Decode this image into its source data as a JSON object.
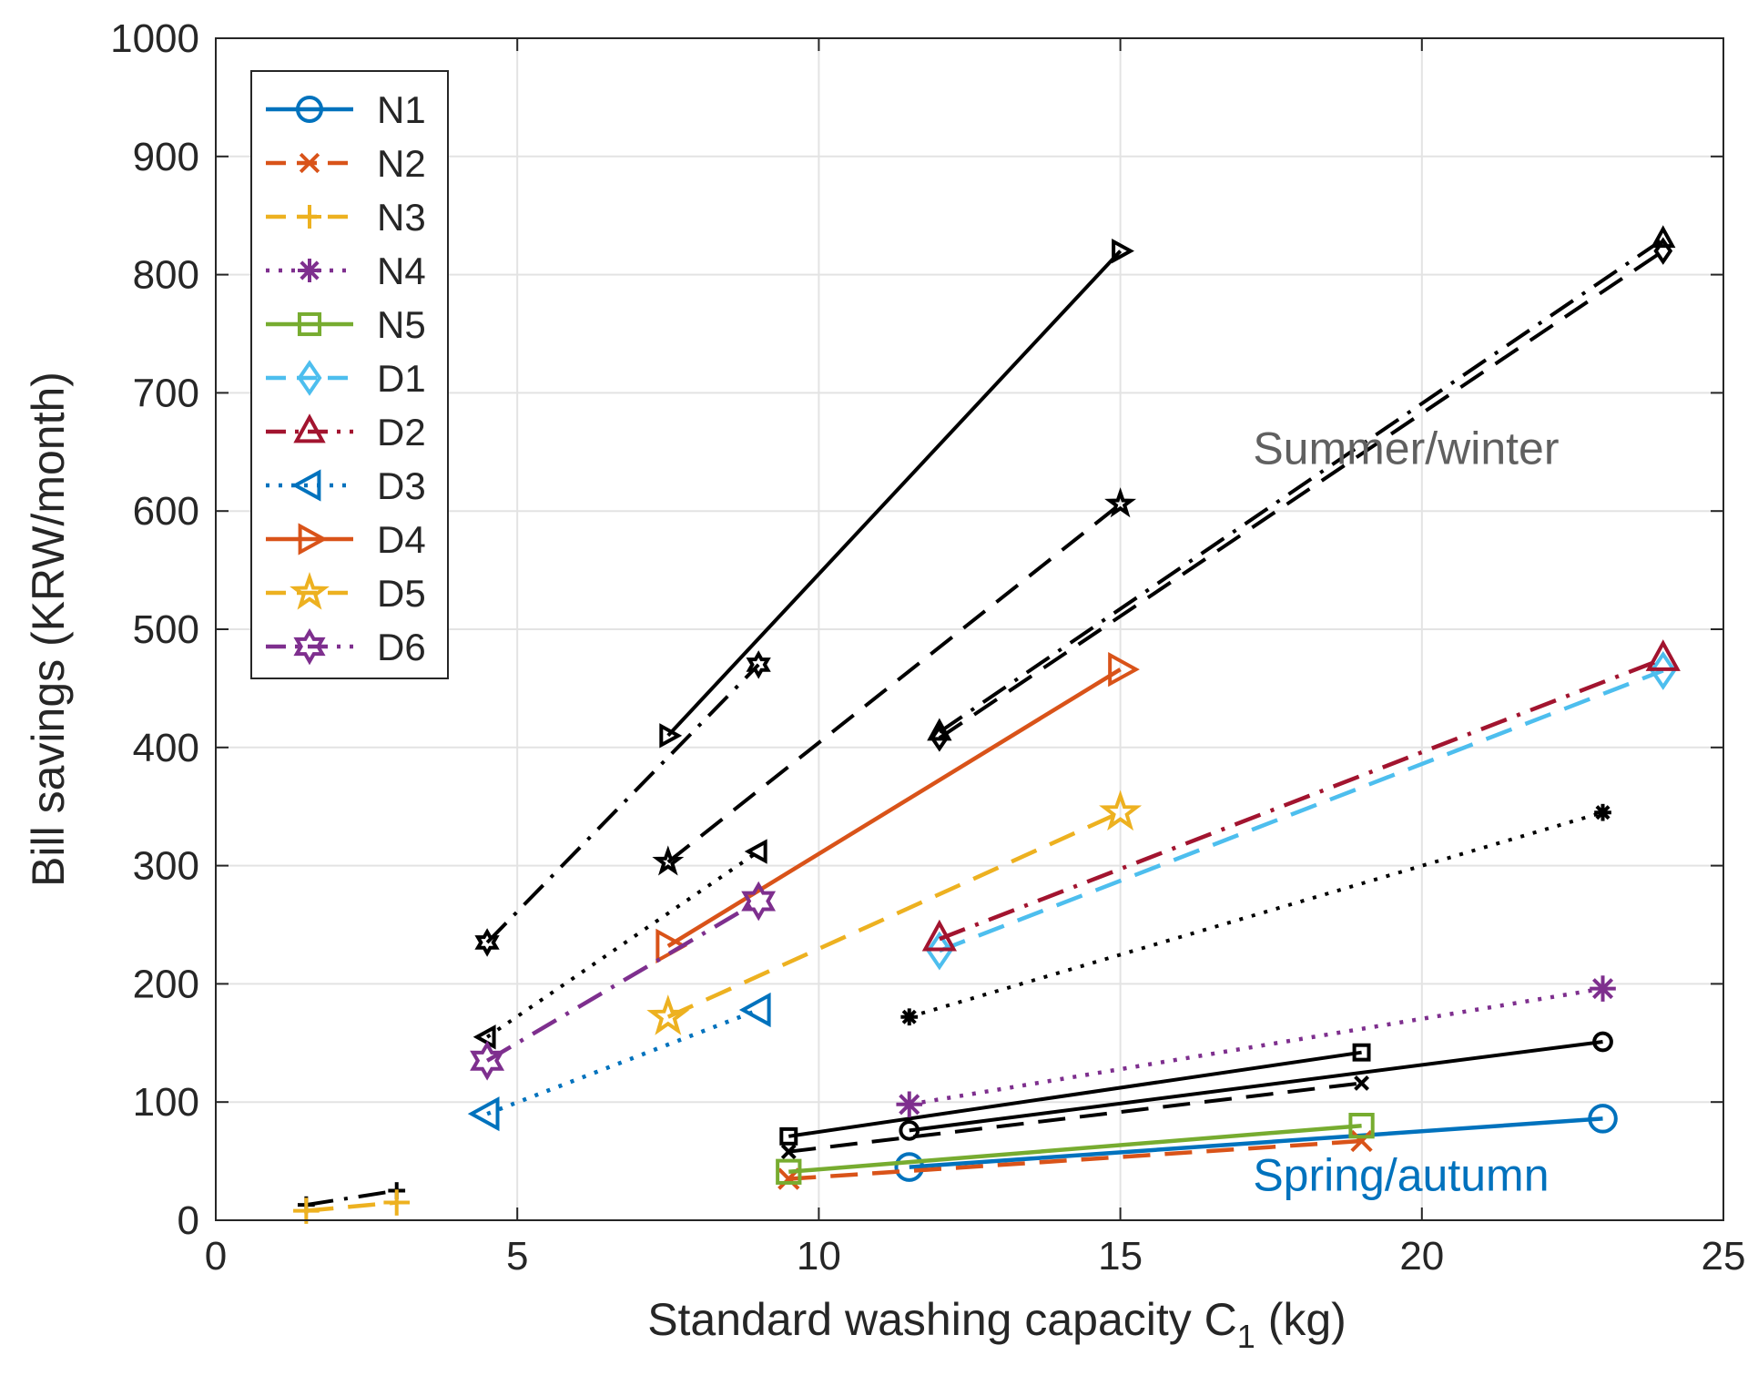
{
  "chart_data": {
    "type": "line",
    "title": "",
    "xlabel": "Standard washing capacity C",
    "xlabel_sub": "1",
    "xlabel_unit": " (kg)",
    "ylabel": "Bill savings (KRW/month)",
    "xlim": [
      0,
      25
    ],
    "ylim": [
      0,
      1000
    ],
    "x_ticks": [
      0,
      5,
      10,
      15,
      20,
      25
    ],
    "y_ticks": [
      0,
      100,
      200,
      300,
      400,
      500,
      600,
      700,
      800,
      900,
      1000
    ],
    "grid": true,
    "legend_position": "top-left",
    "annotations": [
      {
        "text": "Summer/winter",
        "color": "#606060",
        "x": 17.2,
        "y": 640
      },
      {
        "text": "Spring/autumn",
        "color": "#0072BD",
        "x": 17.2,
        "y": 25
      }
    ],
    "series": [
      {
        "name": "N1",
        "color": "#0072BD",
        "dash": "solid",
        "marker": "circle",
        "points": [
          [
            11.5,
            45
          ],
          [
            23,
            86
          ]
        ]
      },
      {
        "name": "N2",
        "color": "#D95319",
        "dash": "dash",
        "marker": "x",
        "points": [
          [
            9.5,
            35
          ],
          [
            19,
            67
          ]
        ]
      },
      {
        "name": "N3",
        "color": "#EDB120",
        "dash": "dash",
        "marker": "plus",
        "points": [
          [
            1.5,
            8
          ],
          [
            3,
            15
          ]
        ]
      },
      {
        "name": "N4",
        "color": "#7E2F8E",
        "dash": "dot",
        "marker": "asterisk",
        "points": [
          [
            11.5,
            98
          ],
          [
            23,
            196
          ]
        ]
      },
      {
        "name": "N5",
        "color": "#77AC30",
        "dash": "solid",
        "marker": "square",
        "points": [
          [
            9.5,
            41
          ],
          [
            19,
            80
          ]
        ]
      },
      {
        "name": "D1",
        "color": "#4DBEEE",
        "dash": "dash",
        "marker": "diamond",
        "points": [
          [
            12,
            228
          ],
          [
            24,
            465
          ]
        ]
      },
      {
        "name": "D2",
        "color": "#A2142F",
        "dash": "dashdot",
        "marker": "triangle-up",
        "points": [
          [
            12,
            238
          ],
          [
            24,
            475
          ]
        ]
      },
      {
        "name": "D3",
        "color": "#0072BD",
        "dash": "dot",
        "marker": "triangle-left",
        "points": [
          [
            4.5,
            90
          ],
          [
            9,
            178
          ]
        ]
      },
      {
        "name": "D4",
        "color": "#D95319",
        "dash": "solid",
        "marker": "triangle-right",
        "points": [
          [
            7.5,
            232
          ],
          [
            15,
            466
          ]
        ]
      },
      {
        "name": "D5",
        "color": "#EDB120",
        "dash": "dash",
        "marker": "pentagram",
        "points": [
          [
            7.5,
            172
          ],
          [
            15,
            345
          ]
        ]
      },
      {
        "name": "D6",
        "color": "#7E2F8E",
        "dash": "dashdot",
        "marker": "hexagram",
        "points": [
          [
            4.5,
            135
          ],
          [
            9,
            270
          ]
        ]
      }
    ],
    "summer_winter_series": [
      {
        "color": "#000000",
        "dash": "solid",
        "marker": "circle",
        "points": [
          [
            11.5,
            76
          ],
          [
            23,
            151
          ]
        ]
      },
      {
        "color": "#000000",
        "dash": "dash",
        "marker": "x",
        "points": [
          [
            9.5,
            58
          ],
          [
            19,
            116
          ]
        ]
      },
      {
        "color": "#000000",
        "dash": "dashdot",
        "marker": "plus",
        "points": [
          [
            1.5,
            13
          ],
          [
            3,
            25
          ]
        ]
      },
      {
        "color": "#000000",
        "dash": "dot",
        "marker": "asterisk",
        "points": [
          [
            11.5,
            172
          ],
          [
            23,
            345
          ]
        ]
      },
      {
        "color": "#000000",
        "dash": "solid",
        "marker": "square",
        "points": [
          [
            9.5,
            71
          ],
          [
            19,
            142
          ]
        ]
      },
      {
        "color": "#000000",
        "dash": "dash",
        "marker": "diamond",
        "points": [
          [
            12,
            408
          ],
          [
            24,
            820
          ]
        ]
      },
      {
        "color": "#000000",
        "dash": "dashdot",
        "marker": "triangle-up",
        "points": [
          [
            12,
            413
          ],
          [
            24,
            830
          ]
        ]
      },
      {
        "color": "#000000",
        "dash": "dot",
        "marker": "triangle-left",
        "points": [
          [
            4.5,
            155
          ],
          [
            9,
            312
          ]
        ]
      },
      {
        "color": "#000000",
        "dash": "solid",
        "marker": "triangle-right",
        "points": [
          [
            7.5,
            410
          ],
          [
            15,
            820
          ]
        ]
      },
      {
        "color": "#000000",
        "dash": "dash",
        "marker": "pentagram",
        "points": [
          [
            7.5,
            303
          ],
          [
            15,
            606
          ]
        ]
      },
      {
        "color": "#000000",
        "dash": "dashdot",
        "marker": "hexagram",
        "points": [
          [
            4.5,
            235
          ],
          [
            9,
            470
          ]
        ]
      }
    ]
  }
}
